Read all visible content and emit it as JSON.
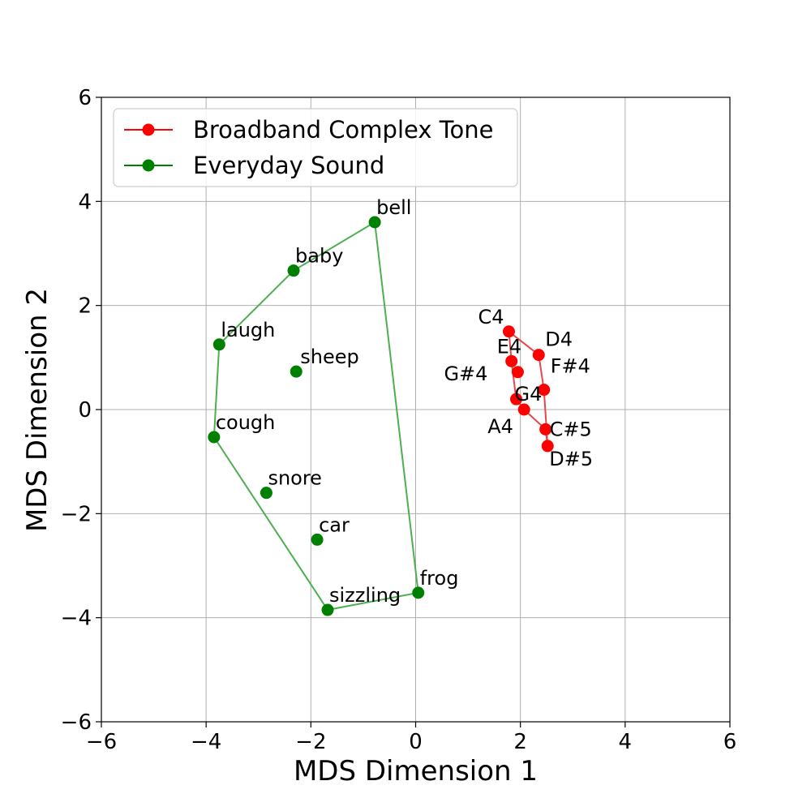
{
  "chart_data": {
    "type": "scatter",
    "title": "",
    "xlabel": "MDS Dimension 1",
    "ylabel": "MDS Dimension 2",
    "xlim": [
      -6,
      6
    ],
    "ylim": [
      -6,
      6
    ],
    "xticks": [
      -6,
      -4,
      -2,
      0,
      2,
      4,
      6
    ],
    "yticks": [
      -6,
      -4,
      -2,
      0,
      2,
      4,
      6
    ],
    "xtick_labels": [
      "−6",
      "−4",
      "−2",
      "0",
      "2",
      "4",
      "6"
    ],
    "ytick_labels": [
      "−6",
      "−4",
      "−2",
      "0",
      "2",
      "4",
      "6"
    ],
    "grid": true,
    "legend_position": "top-left",
    "series": [
      {
        "name": "Broadband Complex Tone",
        "color": "#ff0000",
        "hull_color": "#e8474a",
        "points": [
          {
            "label": "C4",
            "x": 1.78,
            "y": 1.5
          },
          {
            "label": "D4",
            "x": 2.35,
            "y": 1.05
          },
          {
            "label": "E4",
            "x": 1.83,
            "y": 0.93
          },
          {
            "label": "F#4",
            "x": 2.45,
            "y": 0.38
          },
          {
            "label": "G#4",
            "x": 1.95,
            "y": 0.72
          },
          {
            "label": "G4",
            "x": 1.92,
            "y": 0.2
          },
          {
            "label": "A4",
            "x": 2.07,
            "y": 0.0
          },
          {
            "label": "C#5",
            "x": 2.48,
            "y": -0.38
          },
          {
            "label": "D#5",
            "x": 2.52,
            "y": -0.7
          }
        ],
        "hull": [
          "C4",
          "D4",
          "F#4",
          "D#5",
          "C#5",
          "A4",
          "G4",
          "E4",
          "C4"
        ]
      },
      {
        "name": "Everyday Sound",
        "color": "#008000",
        "hull_color": "#4caf50",
        "points": [
          {
            "label": "bell",
            "x": -0.78,
            "y": 3.6
          },
          {
            "label": "baby",
            "x": -2.33,
            "y": 2.67
          },
          {
            "label": "laugh",
            "x": -3.75,
            "y": 1.25
          },
          {
            "label": "sheep",
            "x": -2.28,
            "y": 0.73
          },
          {
            "label": "cough",
            "x": -3.85,
            "y": -0.53
          },
          {
            "label": "snore",
            "x": -2.85,
            "y": -1.6
          },
          {
            "label": "car",
            "x": -1.88,
            "y": -2.5
          },
          {
            "label": "frog",
            "x": 0.05,
            "y": -3.52
          },
          {
            "label": "sizzling",
            "x": -1.68,
            "y": -3.85
          }
        ],
        "hull": [
          "bell",
          "baby",
          "laugh",
          "cough",
          "sizzling",
          "frog",
          "bell"
        ]
      }
    ]
  }
}
